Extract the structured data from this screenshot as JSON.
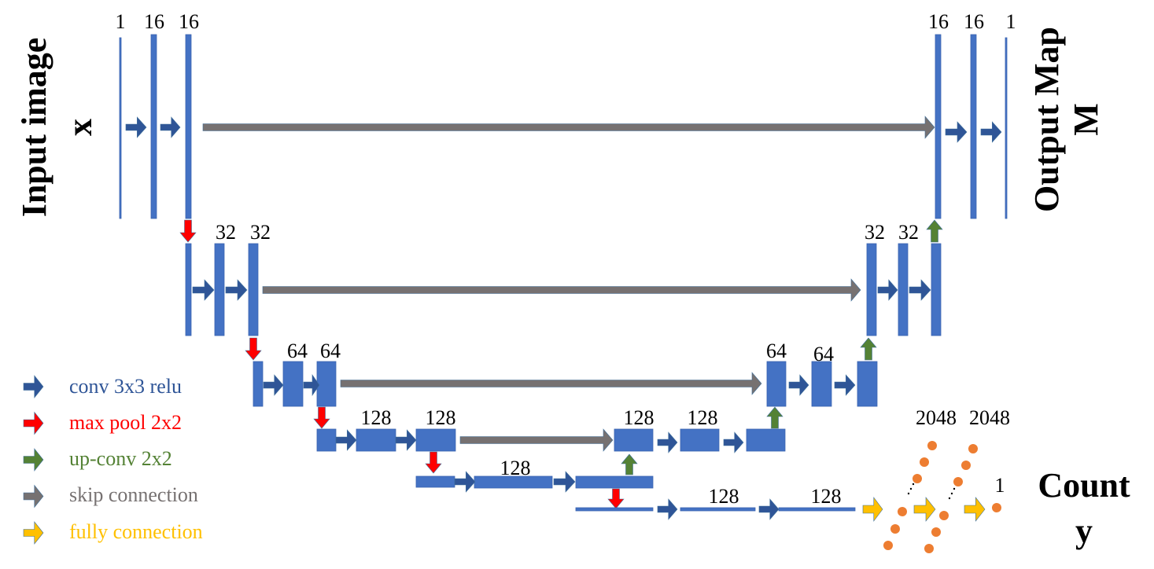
{
  "colors": {
    "block": "#4472C4",
    "conv": "#2F5597",
    "pool": "#FF0000",
    "upconv": "#548235",
    "skip": "#767171",
    "fc": "#FFC000",
    "neuron": "#ED7D31"
  },
  "input_label": "Input image",
  "input_symbol": "x",
  "output_label": "Output Map",
  "output_symbol": "M",
  "count_label": "Count",
  "count_symbol": "y",
  "channel_labels": {
    "row1_left": [
      "1",
      "16",
      "16"
    ],
    "row1_right": [
      "16",
      "16",
      "1"
    ],
    "row2_left": [
      "32",
      "32"
    ],
    "row2_right": [
      "32",
      "32"
    ],
    "row3_left": [
      "64",
      "64"
    ],
    "row3_right": [
      "64",
      "64"
    ],
    "row4_left": [
      "128",
      "128"
    ],
    "row4_right": [
      "128",
      "128"
    ],
    "row5": [
      "128"
    ],
    "row6": [
      "128",
      "128"
    ],
    "fc": [
      "2048",
      "2048",
      "1"
    ]
  },
  "legend": [
    {
      "label": "conv 3x3 relu",
      "color": "#2F5597"
    },
    {
      "label": "max pool 2x2",
      "color": "#FF0000"
    },
    {
      "label": "up-conv 2x2",
      "color": "#548235"
    },
    {
      "label": "skip connection",
      "color": "#767171"
    },
    {
      "label": "fully connection",
      "color": "#FFC000"
    }
  ]
}
